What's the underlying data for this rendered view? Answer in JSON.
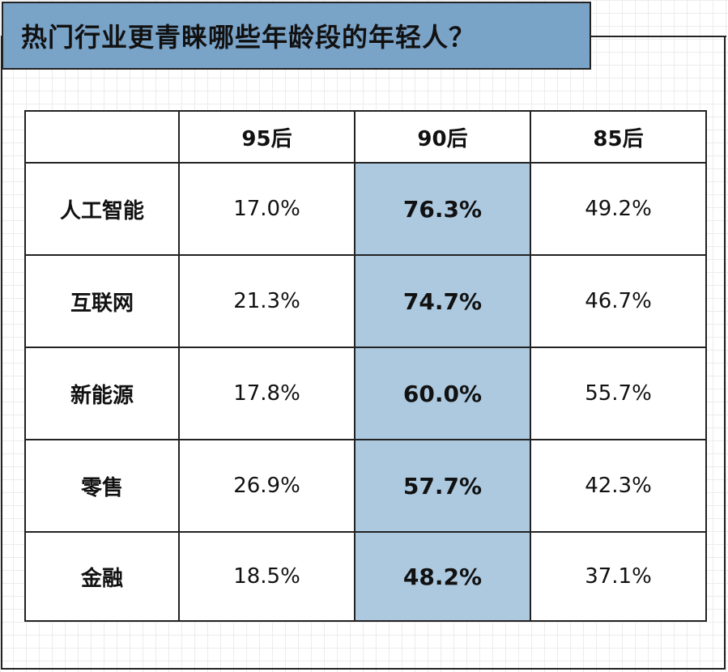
{
  "title": "热门行业更青睐哪些年龄段的年轻人？",
  "colors": {
    "title_bg": "#7aa3c8",
    "highlight_bg": "#adc9e0",
    "border": "#222222"
  },
  "chart_data": {
    "type": "table",
    "corner": "",
    "columns": [
      "95后",
      "90后",
      "85后"
    ],
    "highlight_column": 1,
    "rows": [
      {
        "label": "人工智能",
        "cells": [
          "17.0%",
          "76.3%",
          "49.2%"
        ]
      },
      {
        "label": "互联网",
        "cells": [
          "21.3%",
          "74.7%",
          "46.7%"
        ]
      },
      {
        "label": "新能源",
        "cells": [
          "17.8%",
          "60.0%",
          "55.7%"
        ]
      },
      {
        "label": "零售",
        "cells": [
          "26.9%",
          "57.7%",
          "42.3%"
        ]
      },
      {
        "label": "金融",
        "cells": [
          "18.5%",
          "48.2%",
          "37.1%"
        ]
      }
    ]
  }
}
